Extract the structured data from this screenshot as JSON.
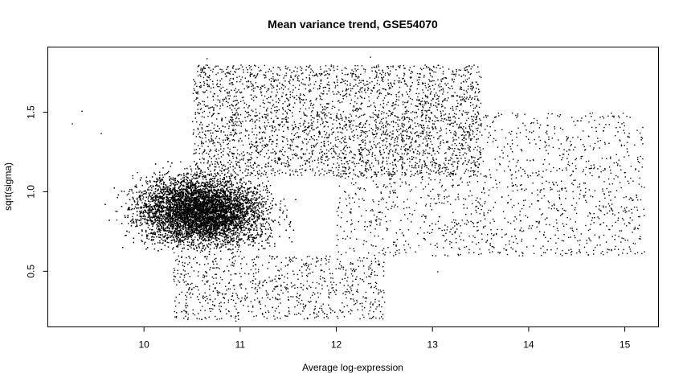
{
  "chart_data": {
    "type": "scatter",
    "title": "Mean variance trend, GSE54070",
    "xlabel": "Average log-expression",
    "ylabel": "sqrt(sigma)",
    "xlim": [
      9.0,
      15.35
    ],
    "ylim": [
      0.15,
      1.91
    ],
    "x_ticks": [
      10,
      11,
      12,
      13,
      14,
      15
    ],
    "x_tick_labels": [
      "10",
      "11",
      "12",
      "13",
      "14",
      "15"
    ],
    "y_ticks": [
      0.5,
      1.0,
      1.5
    ],
    "y_tick_labels": [
      "0.5",
      "1.0",
      "1.5"
    ],
    "grid": false,
    "legend": "none",
    "point_color": "#000000",
    "density_regions": [
      {
        "region": "dense core",
        "x_range": [
          9.6,
          11.6
        ],
        "y_range": [
          0.55,
          1.2
        ],
        "approx_points": 40000
      },
      {
        "region": "upper fan",
        "x_range": [
          10.5,
          13.5
        ],
        "y_range": [
          1.1,
          1.8
        ],
        "approx_points": 3000
      },
      {
        "region": "right tail",
        "x_range": [
          12.0,
          15.2
        ],
        "y_range": [
          0.6,
          1.5
        ],
        "approx_points": 1500
      },
      {
        "region": "lower spread",
        "x_range": [
          10.3,
          12.5
        ],
        "y_range": [
          0.2,
          0.6
        ],
        "approx_points": 800
      }
    ],
    "outlier_points": [
      {
        "x": 9.25,
        "y": 1.43
      },
      {
        "x": 9.35,
        "y": 1.51
      },
      {
        "x": 10.65,
        "y": 1.84
      },
      {
        "x": 12.35,
        "y": 1.85
      },
      {
        "x": 12.7,
        "y": 1.78
      },
      {
        "x": 14.35,
        "y": 1.24
      },
      {
        "x": 14.85,
        "y": 0.9
      },
      {
        "x": 15.05,
        "y": 0.84
      },
      {
        "x": 15.1,
        "y": 0.77
      },
      {
        "x": 14.6,
        "y": 0.68
      },
      {
        "x": 14.9,
        "y": 0.66
      },
      {
        "x": 10.95,
        "y": 0.19
      },
      {
        "x": 10.9,
        "y": 0.22
      },
      {
        "x": 9.55,
        "y": 1.37
      },
      {
        "x": 13.05,
        "y": 0.5
      }
    ]
  }
}
